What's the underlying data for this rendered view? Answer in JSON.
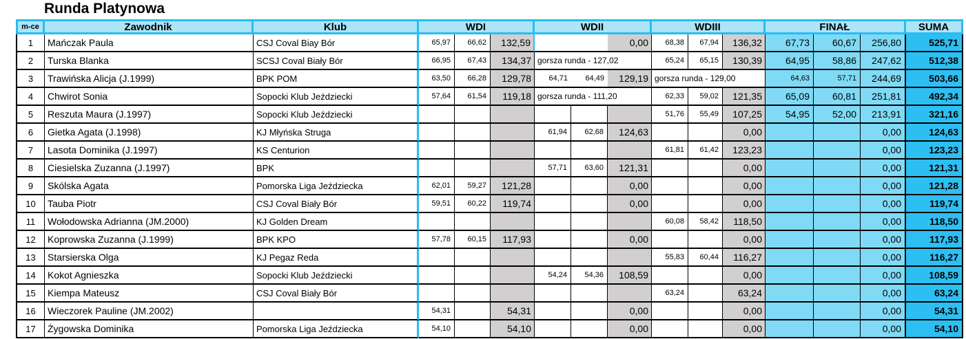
{
  "title": "Runda Platynowa",
  "colors": {
    "cyan": "#27bdf1",
    "header_bg": "#ade4f9",
    "final_bg": "#80daf6",
    "suma_bg": "#2ebff2",
    "total_gray": "#d1cfcf"
  },
  "table": {
    "headers": {
      "place": "m-ce",
      "competitor": "Zawodnik",
      "club": "Klub",
      "wdi": "WDI",
      "wdii": "WDII",
      "wdiii": "WDIII",
      "final": "FINAŁ",
      "suma": "SUMA"
    },
    "rows": [
      {
        "place": "1",
        "zawodnik": "Mańczak Paula",
        "klub": "CSJ Coval Biay Bór",
        "wdi": {
          "j1": "65,97",
          "j2": "66,62",
          "t": "132,59"
        },
        "wdii": {
          "mergedJudges": true,
          "t": "0,00"
        },
        "wdiii": {
          "j1": "68,38",
          "j2": "67,94",
          "t": "136,32"
        },
        "final": {
          "j1": "67,73",
          "j2": "60,67",
          "t": "256,80"
        },
        "suma": "525,71"
      },
      {
        "place": "2",
        "zawodnik": "Turska Blanka",
        "klub": "SCSJ Coval Biały Bór",
        "wdi": {
          "j1": "66,95",
          "j2": "67,43",
          "t": "134,37"
        },
        "wdii": {
          "note": "gorsza runda - 127,02"
        },
        "wdiii": {
          "j1": "65,24",
          "j2": "65,15",
          "t": "130,39"
        },
        "final": {
          "j1": "64,95",
          "j2": "58,86",
          "t": "247,62"
        },
        "suma": "512,38"
      },
      {
        "place": "3",
        "zawodnik": "Trawińska Alicja (J.1999)",
        "klub": "BPK POM",
        "wdi": {
          "j1": "63,50",
          "j2": "66,28",
          "t": "129,78"
        },
        "wdii": {
          "j1": "64,71",
          "j2": "64,49",
          "t": "129,19",
          "noBorders": true
        },
        "wdiii": {
          "note": "gorsza runda - 129,00"
        },
        "final": {
          "j1": "64,63",
          "j2": "57,71",
          "t": "244,69",
          "small": true
        },
        "suma": "503,66"
      },
      {
        "place": "4",
        "zawodnik": "Chwirot Sonia",
        "klub": "Sopocki Klub Jeździecki",
        "wdi": {
          "j1": "57,64",
          "j2": "61,54",
          "t": "119,18"
        },
        "wdii": {
          "note": "gorsza runda - 111,20"
        },
        "wdiii": {
          "j1": "62,33",
          "j2": "59,02",
          "t": "121,35"
        },
        "final": {
          "j1": "65,09",
          "j2": "60,81",
          "t": "251,81"
        },
        "suma": "492,34"
      },
      {
        "place": "5",
        "zawodnik": "Reszuta Maura (J.1997)",
        "klub": "Sopocki Klub Jeździecki",
        "wdi": {
          "j1": "",
          "j2": "",
          "t": ""
        },
        "wdii": {
          "j1": "",
          "j2": "",
          "t": ""
        },
        "wdiii": {
          "j1": "51,76",
          "j2": "55,49",
          "t": "107,25"
        },
        "final": {
          "j1": "54,95",
          "j2": "52,00",
          "t": "213,91"
        },
        "suma": "321,16"
      },
      {
        "place": "6",
        "zawodnik": "Gietka Agata (J.1998)",
        "klub": "KJ Młyńska Struga",
        "wdi": {
          "j1": "",
          "j2": "",
          "t": ""
        },
        "wdii": {
          "j1": "61,94",
          "j2": "62,68",
          "t": "124,63"
        },
        "wdiii": {
          "j1": "",
          "j2": "",
          "t": "0,00"
        },
        "final": {
          "j1": "",
          "j2": "",
          "t": "0,00"
        },
        "suma": "124,63"
      },
      {
        "place": "7",
        "zawodnik": "Lasota Dominika (J.1997)",
        "klub": "KS Centurion",
        "wdi": {
          "j1": "",
          "j2": "",
          "t": ""
        },
        "wdii": {
          "j1": "",
          "j2": "",
          "t": ""
        },
        "wdiii": {
          "j1": "61,81",
          "j2": "61,42",
          "t": "123,23"
        },
        "final": {
          "j1": "",
          "j2": "",
          "t": "0,00"
        },
        "suma": "123,23"
      },
      {
        "place": "8",
        "zawodnik": "Ciesielska Zuzanna (J.1997)",
        "klub": "BPK",
        "wdi": {
          "j1": "",
          "j2": "",
          "t": ""
        },
        "wdii": {
          "j1": "57,71",
          "j2": "63,60",
          "t": "121,31"
        },
        "wdiii": {
          "j1": "",
          "j2": "",
          "t": "0,00"
        },
        "final": {
          "j1": "",
          "j2": "",
          "t": "0,00"
        },
        "suma": "121,31"
      },
      {
        "place": "9",
        "zawodnik": "Skólska Agata",
        "klub": "Pomorska Liga Jeździecka",
        "wdi": {
          "j1": "62,01",
          "j2": "59,27",
          "t": "121,28"
        },
        "wdii": {
          "j1": "",
          "j2": "",
          "t": "0,00"
        },
        "wdiii": {
          "j1": "",
          "j2": "",
          "t": "0,00"
        },
        "final": {
          "j1": "",
          "j2": "",
          "t": "0,00"
        },
        "suma": "121,28"
      },
      {
        "place": "10",
        "zawodnik": "Tauba Piotr",
        "klub": "CSJ Coval Biały Bór",
        "wdi": {
          "j1": "59,51",
          "j2": "60,22",
          "t": "119,74"
        },
        "wdii": {
          "j1": "",
          "j2": "",
          "t": "0,00"
        },
        "wdiii": {
          "j1": "",
          "j2": "",
          "t": "0,00"
        },
        "final": {
          "j1": "",
          "j2": "",
          "t": "0,00"
        },
        "suma": "119,74"
      },
      {
        "place": "11",
        "zawodnik": "Wołodowska Adrianna (JM.2000)",
        "klub": "KJ Golden Dream",
        "wdi": {
          "j1": "",
          "j2": "",
          "t": ""
        },
        "wdii": {
          "j1": "",
          "j2": "",
          "t": ""
        },
        "wdiii": {
          "j1": "60,08",
          "j2": "58,42",
          "t": "118,50"
        },
        "final": {
          "j1": "",
          "j2": "",
          "t": "0,00"
        },
        "suma": "118,50"
      },
      {
        "place": "12",
        "zawodnik": "Koprowska Zuzanna (J.1999)",
        "klub": "BPK KPO",
        "wdi": {
          "j1": "57,78",
          "j2": "60,15",
          "t": "117,93"
        },
        "wdii": {
          "j1": "",
          "j2": "",
          "t": "0,00"
        },
        "wdiii": {
          "j1": "",
          "j2": "",
          "t": "0,00"
        },
        "final": {
          "j1": "",
          "j2": "",
          "t": "0,00"
        },
        "suma": "117,93"
      },
      {
        "place": "13",
        "zawodnik": "Starsierska Olga",
        "klub": "KJ Pegaz Reda",
        "wdi": {
          "j1": "",
          "j2": "",
          "t": ""
        },
        "wdii": {
          "j1": "",
          "j2": "",
          "t": ""
        },
        "wdiii": {
          "j1": "55,83",
          "j2": "60,44",
          "t": "116,27"
        },
        "final": {
          "j1": "",
          "j2": "",
          "t": "0,00"
        },
        "suma": "116,27"
      },
      {
        "place": "14",
        "zawodnik": "Kokot Agnieszka",
        "klub": "Sopocki Klub Jeździecki",
        "wdi": {
          "j1": "",
          "j2": "",
          "t": ""
        },
        "wdii": {
          "j1": "54,24",
          "j2": "54,36",
          "t": "108,59"
        },
        "wdiii": {
          "j1": "",
          "j2": "",
          "t": "0,00"
        },
        "final": {
          "j1": "",
          "j2": "",
          "t": "0,00"
        },
        "suma": "108,59"
      },
      {
        "place": "15",
        "zawodnik": "Kiempa Mateusz",
        "klub": "CSJ Coval Biały Bór",
        "wdi": {
          "j1": "",
          "j2": "",
          "t": ""
        },
        "wdii": {
          "j1": "",
          "j2": "",
          "t": ""
        },
        "wdiii": {
          "j1": "63,24",
          "j2": "",
          "t": "63,24"
        },
        "final": {
          "j1": "",
          "j2": "",
          "t": "0,00"
        },
        "suma": "63,24"
      },
      {
        "place": "16",
        "zawodnik": "Wieczorek Pauline (JM.2002)",
        "klub": "",
        "wdi": {
          "j1": "54,31",
          "j2": "",
          "t": "54,31"
        },
        "wdii": {
          "j1": "",
          "j2": "",
          "t": "0,00"
        },
        "wdiii": {
          "j1": "",
          "j2": "",
          "t": "0,00"
        },
        "final": {
          "j1": "",
          "j2": "",
          "t": "0,00"
        },
        "suma": "54,31"
      },
      {
        "place": "17",
        "zawodnik": "Żygowska Dominika",
        "klub": "Pomorska Liga Jeździecka",
        "wdi": {
          "j1": "54,10",
          "j2": "",
          "t": "54,10"
        },
        "wdii": {
          "j1": "",
          "j2": "",
          "t": "0,00"
        },
        "wdiii": {
          "j1": "",
          "j2": "",
          "t": "0,00"
        },
        "final": {
          "j1": "",
          "j2": "",
          "t": "0,00"
        },
        "suma": "54,10"
      }
    ]
  }
}
